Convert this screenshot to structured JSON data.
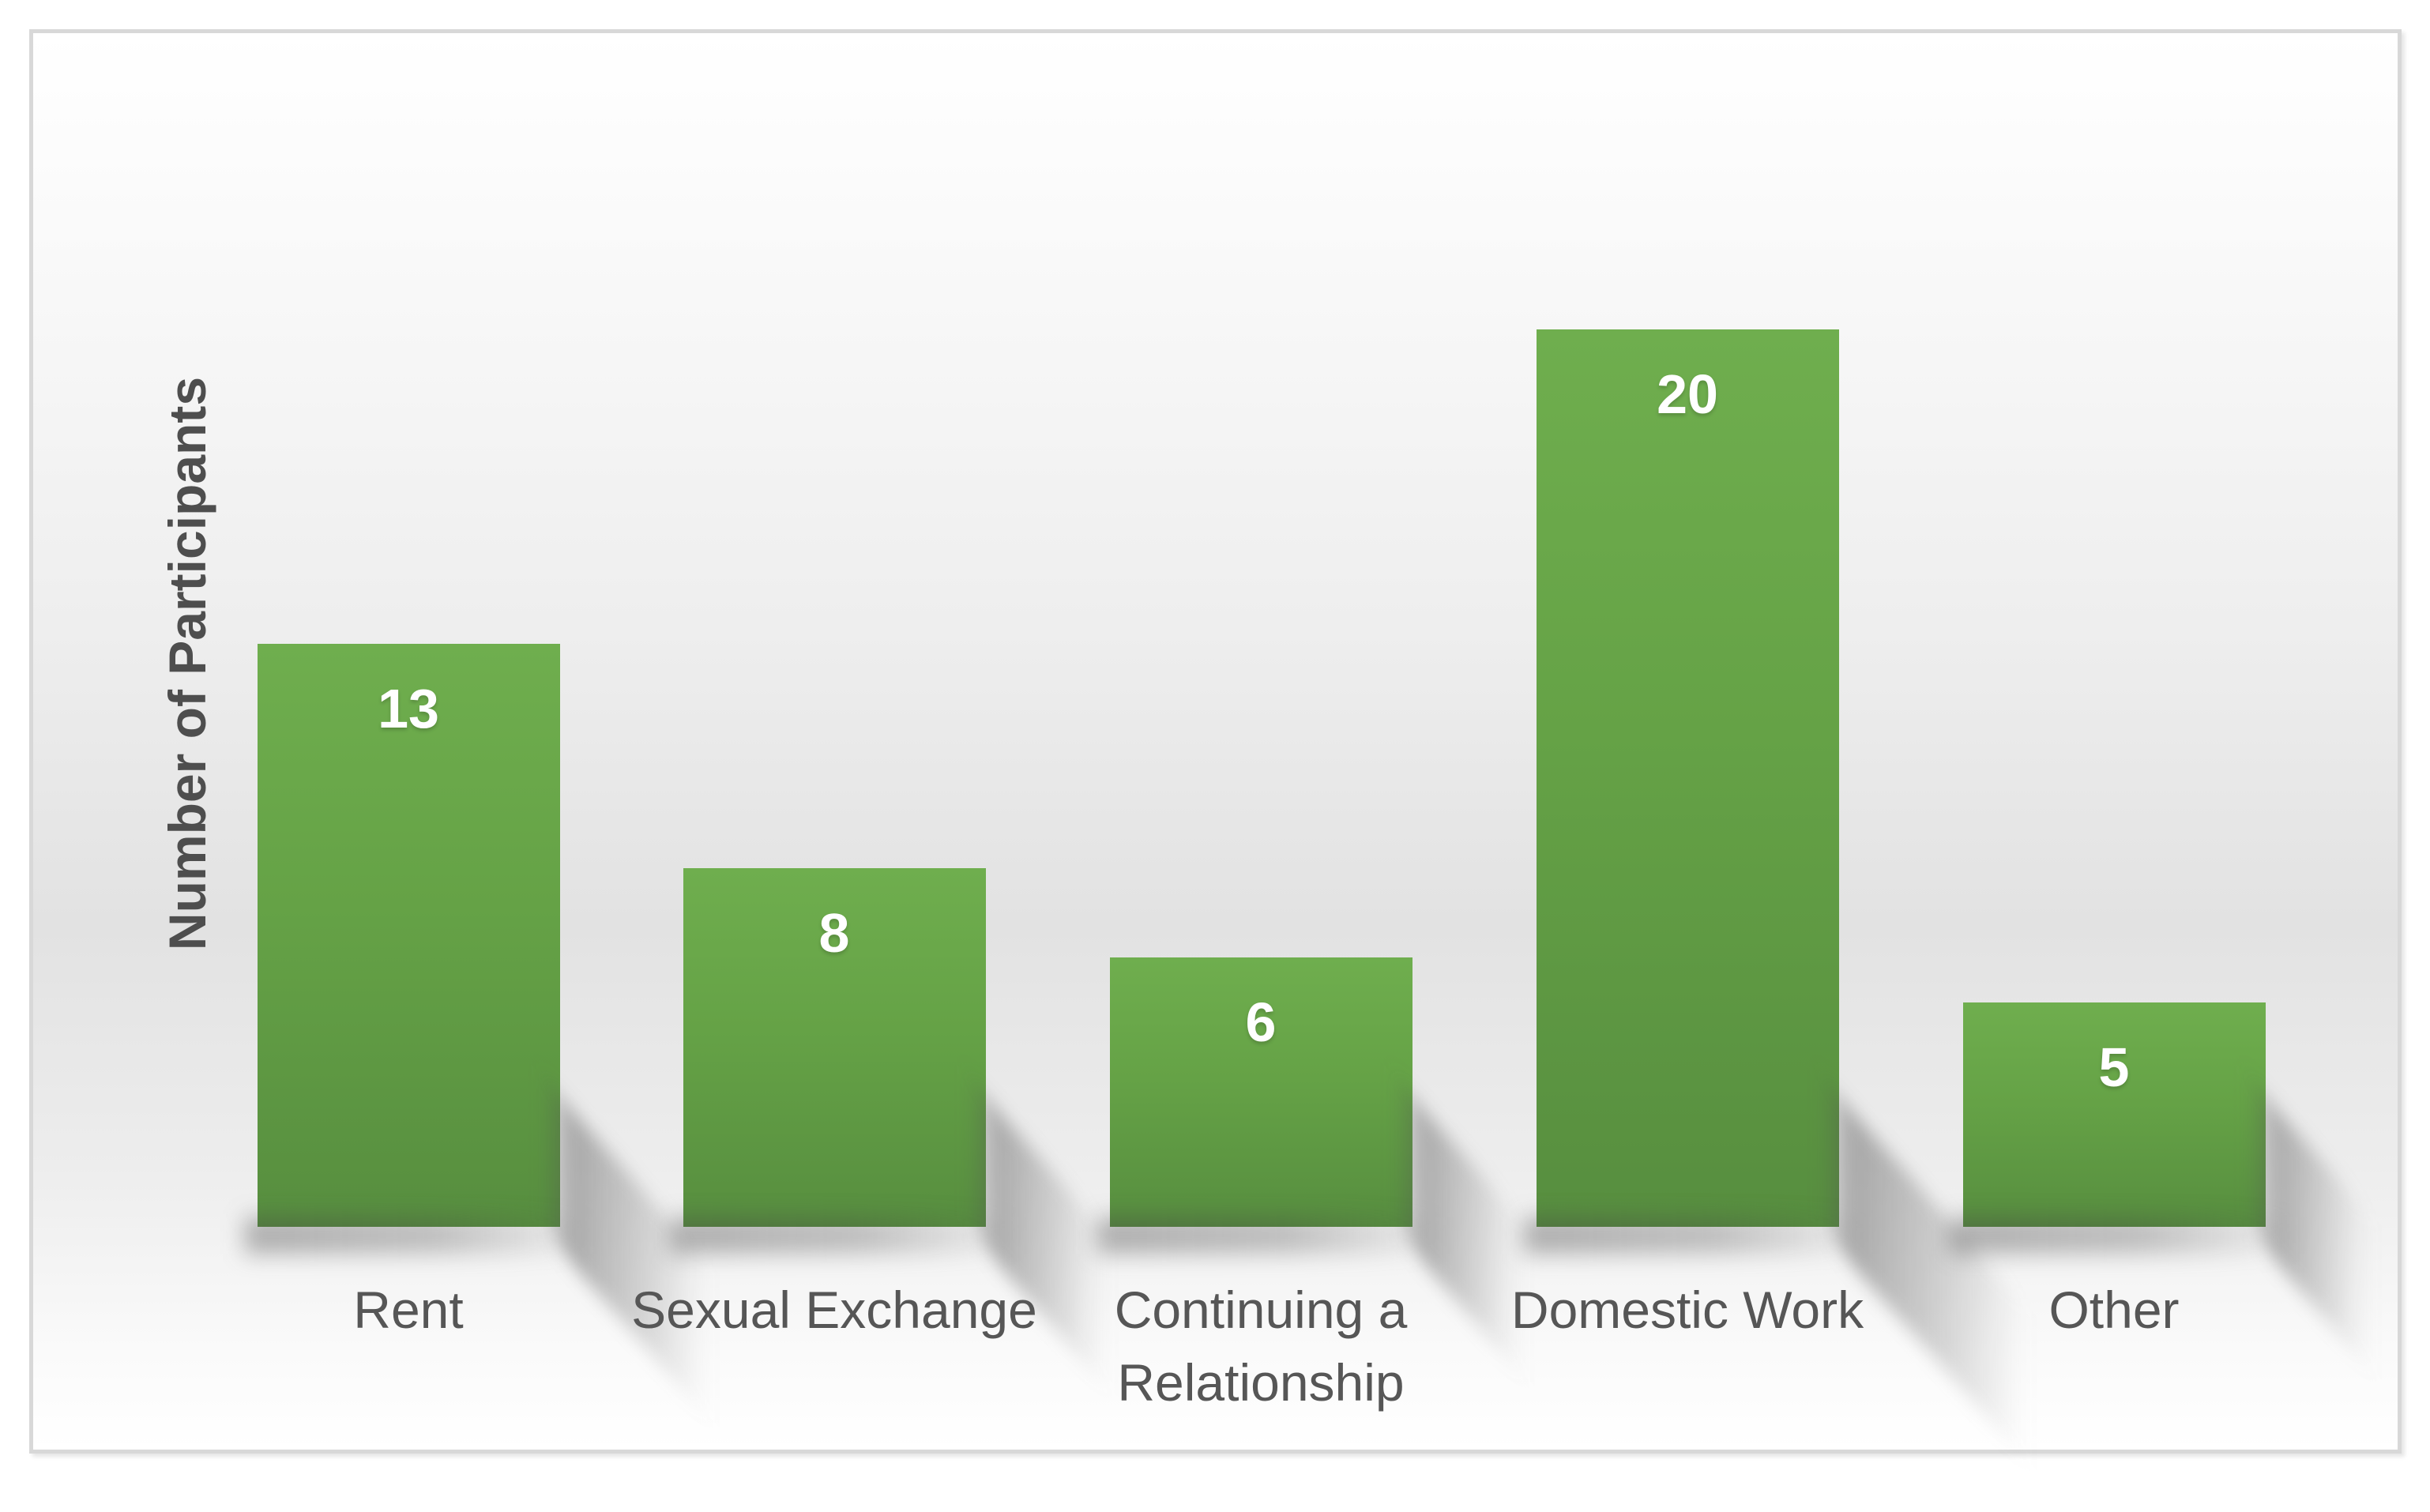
{
  "chart_data": {
    "type": "bar",
    "title": "",
    "categories": [
      "Rent",
      "Sexual Exchange",
      "Continuing a Relationship",
      "Domestic Work",
      "Other"
    ],
    "values": [
      13,
      8,
      6,
      20,
      5
    ],
    "xlabel": "",
    "ylabel": "Number of Participants",
    "ylim": [
      0,
      25
    ],
    "grid": false,
    "legend": "none",
    "data_label_position": "inside-end",
    "style": {
      "bar_gradient_top": "#6fae4e",
      "bar_gradient_bottom": "#578e3f",
      "value_label_color": "#ffffff",
      "category_label_color": "#565656",
      "axis_title_color": "#4e4e4e",
      "frame_border_color": "#d8d8d8",
      "background_top": "#ffffff",
      "background_mid": "#e2e2e2",
      "background_bottom": "#ffffff"
    }
  }
}
